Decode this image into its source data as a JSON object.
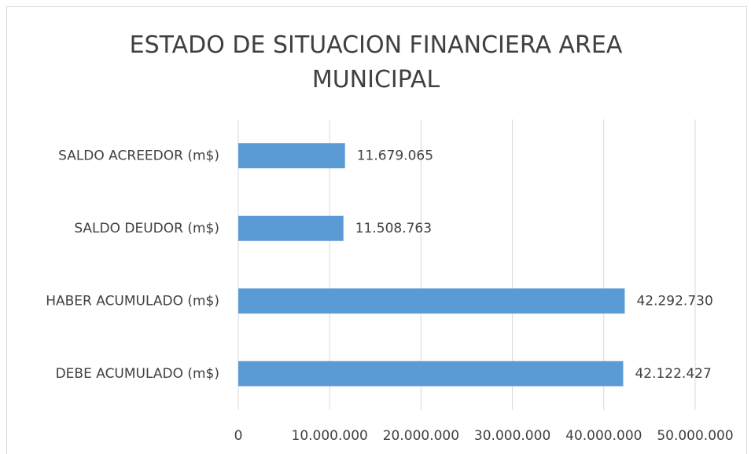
{
  "chart_data": {
    "type": "hbar",
    "title": "ESTADO DE SITUACION FINANCIERA AREA MUNICIPAL",
    "categories": [
      "SALDO ACREEDOR (m$)",
      "SALDO DEUDOR (m$)",
      "HABER ACUMULADO (m$)",
      "DEBE ACUMULADO (m$)"
    ],
    "values": [
      11679065,
      11508763,
      42292730,
      42122427
    ],
    "value_labels": [
      "11.679.065",
      "11.508.763",
      "42.292.730",
      "42.122.427"
    ],
    "color": "#5b9bd5",
    "xlim": [
      0,
      50000000
    ],
    "xticks": [
      0,
      {
        "value": 10000000,
        "label": "10.000.000"
      },
      {
        "value": 20000000,
        "label": "20.000.000"
      },
      {
        "value": 30000000,
        "label": "30.000.000"
      },
      {
        "value": 40000000,
        "label": "40.000.000"
      },
      {
        "value": 50000000,
        "label": "50.000.000"
      }
    ],
    "grid": true
  }
}
